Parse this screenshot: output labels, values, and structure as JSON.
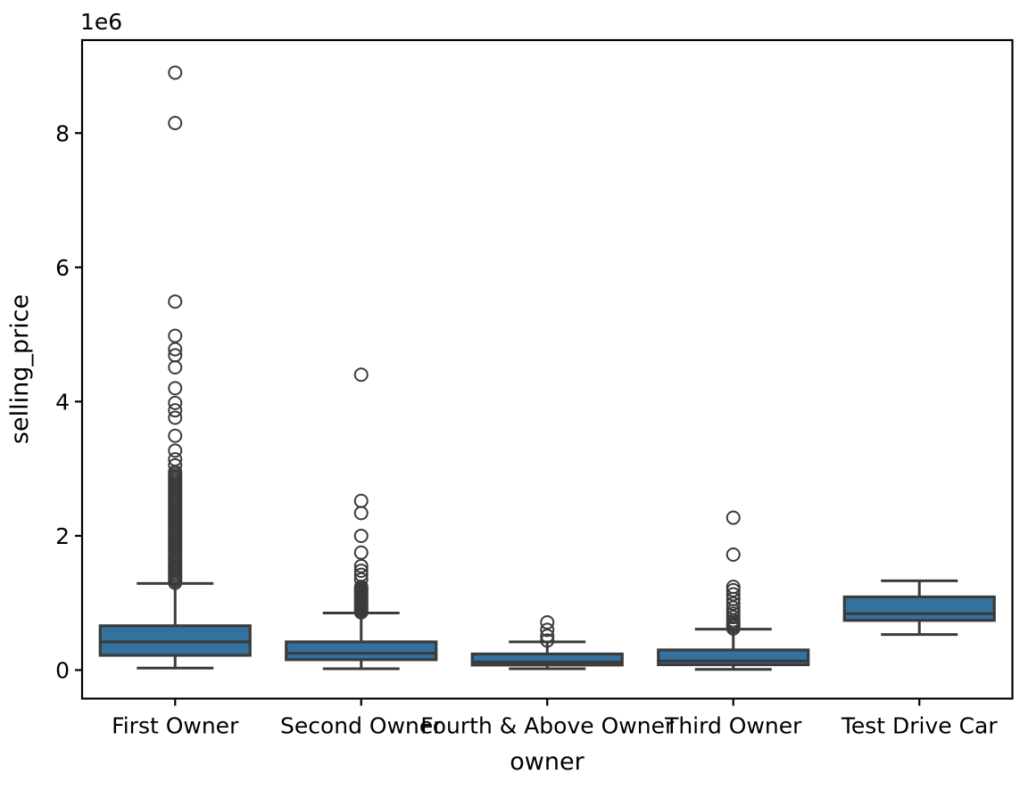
{
  "chart_data": {
    "type": "box",
    "title": "",
    "xlabel": "owner",
    "ylabel": "selling_price",
    "y_offset_label": "1e6",
    "grid": false,
    "legend": null,
    "ylim": [
      -425000,
      9385000
    ],
    "y_ticks": [
      0,
      2000000,
      4000000,
      6000000,
      8000000
    ],
    "y_tick_labels": [
      "0",
      "2",
      "4",
      "6",
      "8"
    ],
    "box_fill_color": "#33719f",
    "line_color": "#3b3b3b",
    "spine_color": "#000000",
    "categories": [
      "First Owner",
      "Second Owner",
      "Fourth & Above Owner",
      "Third Owner",
      "Test Drive Car"
    ],
    "series": [
      {
        "name": "First Owner",
        "whislo": 30000,
        "q1": 220000,
        "med": 420000,
        "q3": 660000,
        "whishi": 1290000,
        "fliers": [
          1300000,
          1330000,
          1360000,
          1390000,
          1420000,
          1450000,
          1480000,
          1510000,
          1540000,
          1570000,
          1600000,
          1630000,
          1660000,
          1690000,
          1720000,
          1750000,
          1780000,
          1810000,
          1840000,
          1870000,
          1900000,
          1930000,
          1960000,
          1990000,
          2020000,
          2050000,
          2080000,
          2110000,
          2140000,
          2170000,
          2200000,
          2230000,
          2260000,
          2290000,
          2320000,
          2350000,
          2380000,
          2410000,
          2440000,
          2470000,
          2500000,
          2530000,
          2560000,
          2590000,
          2620000,
          2650000,
          2680000,
          2710000,
          2740000,
          2770000,
          2800000,
          2830000,
          2860000,
          2890000,
          2920000,
          2950000,
          3050000,
          3140000,
          3270000,
          3490000,
          3760000,
          3870000,
          3980000,
          4200000,
          4510000,
          4690000,
          4780000,
          4980000,
          5490000,
          8150000,
          8900000
        ]
      },
      {
        "name": "Second Owner",
        "whislo": 20000,
        "q1": 155000,
        "med": 250000,
        "q3": 420000,
        "whishi": 850000,
        "fliers": [
          860000,
          880000,
          900000,
          920000,
          940000,
          960000,
          980000,
          1000000,
          1020000,
          1040000,
          1060000,
          1080000,
          1100000,
          1120000,
          1140000,
          1160000,
          1180000,
          1200000,
          1220000,
          1240000,
          1350000,
          1420000,
          1480000,
          1550000,
          1750000,
          2000000,
          2340000,
          2520000,
          4400000
        ]
      },
      {
        "name": "Fourth & Above Owner",
        "whislo": 20000,
        "q1": 75000,
        "med": 120000,
        "q3": 240000,
        "whishi": 420000,
        "fliers": [
          440000,
          510000,
          600000,
          710000
        ]
      },
      {
        "name": "Third Owner",
        "whislo": 10000,
        "q1": 80000,
        "med": 135000,
        "q3": 300000,
        "whishi": 610000,
        "fliers": [
          620000,
          650000,
          680000,
          710000,
          740000,
          790000,
          840000,
          880000,
          930000,
          990000,
          1060000,
          1130000,
          1190000,
          1240000,
          1720000,
          2270000
        ]
      },
      {
        "name": "Test Drive Car",
        "whislo": 530000,
        "q1": 740000,
        "med": 840000,
        "q3": 1090000,
        "whishi": 1330000,
        "fliers": []
      }
    ]
  }
}
